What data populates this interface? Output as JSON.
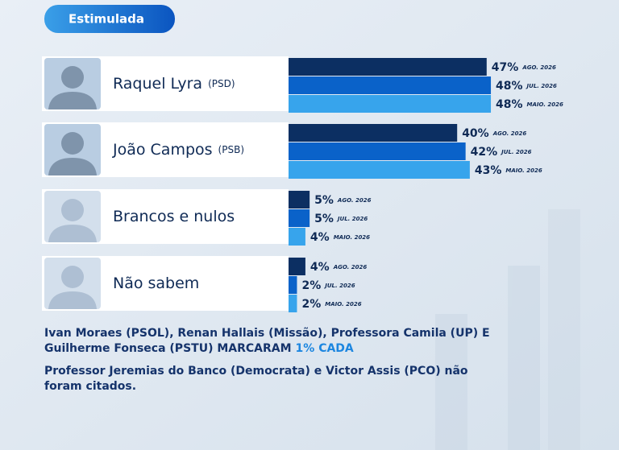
{
  "chart_data": {
    "type": "bar",
    "badge": "Estimulada",
    "categories": [
      "Raquel Lyra",
      "João Campos",
      "Brancos e nulos",
      "Não sabem"
    ],
    "parties": [
      "(PSD)",
      "(PSB)",
      null,
      null
    ],
    "series": [
      {
        "name": "AGO. 2026",
        "color": "#0c2f62",
        "values": [
          47,
          40,
          5,
          4
        ],
        "value_labels": [
          "47%",
          "40%",
          "5%",
          "4%"
        ]
      },
      {
        "name": "JUL. 2026",
        "color": "#0a62c9",
        "values": [
          48,
          42,
          5,
          2
        ],
        "value_labels": [
          "48%",
          "42%",
          "5%",
          "2%"
        ]
      },
      {
        "name": "MAIO. 2026",
        "color": "#37a4ec",
        "values": [
          48,
          43,
          4,
          2
        ],
        "value_labels": [
          "48%",
          "43%",
          "4%",
          "2%"
        ]
      }
    ],
    "notes": [
      {
        "lines": [
          "Ivan Moraes (PSOL), Renan Hallais (Missão), Professora Camila (UP) E",
          "Guilherme Fonseca (PSTU) MARCARAM"
        ],
        "highlight": "1% CADA"
      },
      {
        "lines": [
          "Professor Jeremias do Banco (Democrata) e Victor Assis (PCO) não",
          "foram citados."
        ]
      }
    ]
  }
}
